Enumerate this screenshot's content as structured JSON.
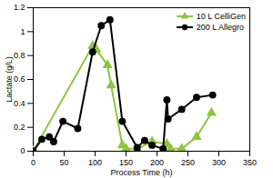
{
  "chart_data": {
    "type": "line",
    "x_label": "Process Time (h)",
    "y_label": "Lactate (g/L)",
    "xlim": [
      0,
      350
    ],
    "xticks": [
      0,
      50,
      100,
      150,
      200,
      250,
      300,
      350
    ],
    "ylim": [
      0,
      1.2
    ],
    "yticks": [
      0,
      0.2,
      0.4,
      0.6,
      0.8,
      1,
      1.2
    ],
    "grid": false,
    "legend": "upper right",
    "series": [
      {
        "name": "10 L CelliGen",
        "color": "#8dc63f",
        "marker": "triangle",
        "x": [
          0,
          96,
          102,
          120,
          126,
          144,
          150,
          168,
          192,
          216,
          222,
          240,
          264,
          288
        ],
        "values": [
          0,
          0.88,
          0.85,
          0.72,
          0.55,
          0.05,
          0.02,
          0.02,
          0.08,
          0.06,
          0.02,
          0.02,
          0.12,
          0.32
        ]
      },
      {
        "name": "200 L Allegro",
        "color": "#000000",
        "marker": "circle",
        "x": [
          0,
          14,
          26,
          33,
          48,
          72,
          96,
          110,
          124,
          144,
          168,
          180,
          192,
          210,
          216,
          218,
          240,
          264,
          290
        ],
        "values": [
          0,
          0.1,
          0.12,
          0.08,
          0.25,
          0.19,
          0.83,
          1.05,
          1.1,
          0.25,
          0.03,
          0.09,
          0.05,
          0.02,
          0.43,
          0.27,
          0.35,
          0.45,
          0.47
        ]
      }
    ]
  }
}
